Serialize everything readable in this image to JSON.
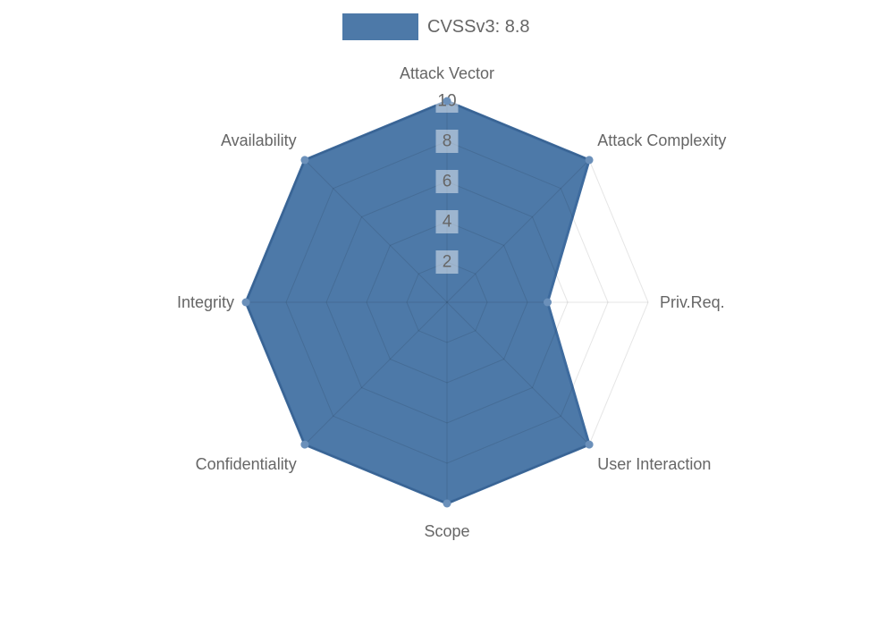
{
  "legend": {
    "label": "CVSSv3: 8.8"
  },
  "chart_data": {
    "type": "radar",
    "title": "",
    "categories": [
      "Attack Vector",
      "Attack Complexity",
      "Priv.Req.",
      "User Interaction",
      "Scope",
      "Confidentiality",
      "Integrity",
      "Availability"
    ],
    "series": [
      {
        "name": "CVSSv3: 8.8",
        "values": [
          10,
          10,
          5,
          10,
          10,
          10,
          10,
          10
        ]
      }
    ],
    "scale": {
      "min": 0,
      "max": 10,
      "ticks": [
        2,
        4,
        6,
        8,
        10
      ]
    },
    "grid": true,
    "legend_position": "top",
    "colors": {
      "fill": "#4d79a8",
      "stroke": "#3e6b9e",
      "marker": "#6b90ba",
      "grid": "rgba(0,0,0,0.10)",
      "tick_backdrop": "rgba(255,255,255,0.45)",
      "label": "#666666"
    }
  }
}
